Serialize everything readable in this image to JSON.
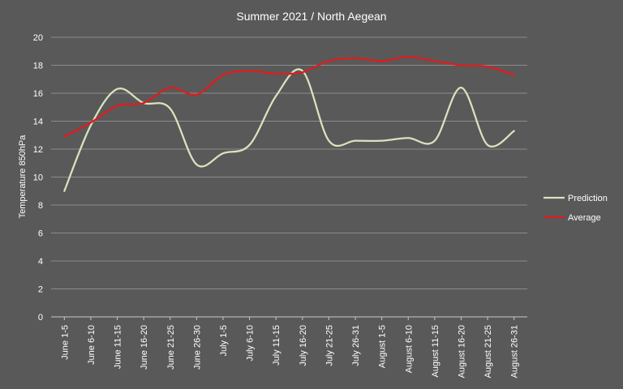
{
  "chart_data": {
    "type": "line",
    "title": "Summer 2021 / North Aegean",
    "xlabel": "",
    "ylabel": "Temperature 850hPa",
    "ylim": [
      0,
      20
    ],
    "yticks": [
      0,
      2,
      4,
      6,
      8,
      10,
      12,
      14,
      16,
      18,
      20
    ],
    "grid": true,
    "legend_position": "right",
    "categories": [
      "June 1-5",
      "June 6-10",
      "June 11-15",
      "June 16-20",
      "June 21-25",
      "June 26-30",
      "July 1-5",
      "July 6-10",
      "July 11-15",
      "July 16-20",
      "July 21-25",
      "July 26-31",
      "August 1-5",
      "August 6-10",
      "August 11-15",
      "August 16-20",
      "August 21-25",
      "August 26-31"
    ],
    "series": [
      {
        "name": "Prediction",
        "color": "#d7e4bd",
        "values": [
          9.0,
          13.7,
          16.3,
          15.3,
          14.9,
          10.9,
          11.7,
          12.3,
          15.8,
          17.6,
          12.6,
          12.6,
          12.6,
          12.8,
          12.6,
          16.4,
          12.3,
          13.3
        ]
      },
      {
        "name": "Average",
        "color": "#e31a1c",
        "values": [
          12.9,
          13.9,
          15.1,
          15.3,
          16.4,
          15.9,
          17.3,
          17.6,
          17.4,
          17.5,
          18.3,
          18.5,
          18.3,
          18.6,
          18.3,
          18.0,
          17.9,
          17.3
        ]
      }
    ]
  }
}
